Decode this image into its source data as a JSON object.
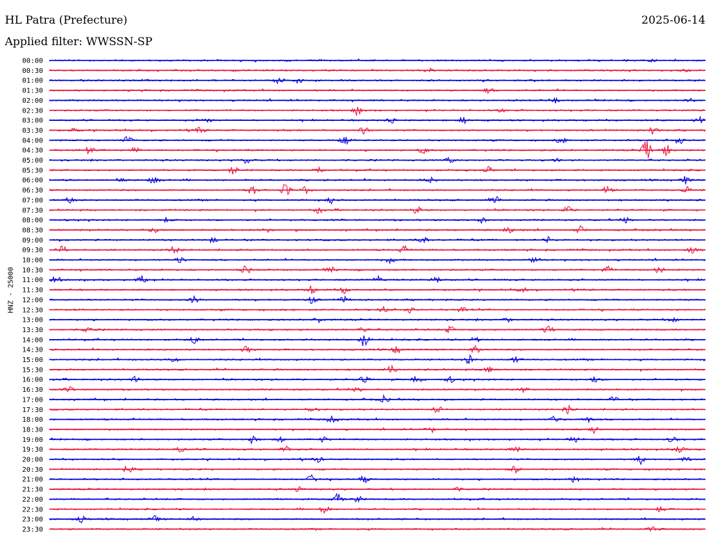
{
  "header": {
    "station": "HL Patra (Prefecture)",
    "date": "2025-06-14",
    "filter": "Applied filter: WWSSN-SP"
  },
  "axis": {
    "channel_label": "HNZ - 25000"
  },
  "colors": {
    "even": "#0000dd",
    "odd": "#e8143c"
  },
  "chart_data": {
    "type": "line",
    "title": "HL Patra (Prefecture)",
    "subtitle": "Applied filter: WWSSN-SP",
    "ylabel": "HNZ - 25000",
    "rows": [
      {
        "time": "00:00",
        "events": [
          [
            0.92,
            0.4
          ]
        ]
      },
      {
        "time": "00:30",
        "events": [
          [
            0.58,
            0.5
          ],
          [
            0.97,
            0.3
          ]
        ]
      },
      {
        "time": "01:00",
        "events": [
          [
            0.35,
            1.3
          ],
          [
            0.38,
            0.8
          ]
        ]
      },
      {
        "time": "01:30",
        "events": [
          [
            0.67,
            0.8
          ]
        ]
      },
      {
        "time": "02:00",
        "events": [
          [
            0.77,
            1.0
          ],
          [
            0.98,
            0.9
          ]
        ]
      },
      {
        "time": "02:30",
        "events": [
          [
            0.47,
            1.4
          ],
          [
            0.69,
            0.6
          ]
        ]
      },
      {
        "time": "03:00",
        "events": [
          [
            0.24,
            0.9
          ],
          [
            0.52,
            1.0
          ],
          [
            0.63,
            1.2
          ],
          [
            0.99,
            1.3
          ]
        ]
      },
      {
        "time": "03:30",
        "events": [
          [
            0.04,
            0.8
          ],
          [
            0.23,
            1.0
          ],
          [
            0.48,
            1.2
          ],
          [
            0.92,
            1.6
          ]
        ]
      },
      {
        "time": "04:00",
        "events": [
          [
            0.12,
            1.6
          ],
          [
            0.45,
            1.3
          ],
          [
            0.78,
            1.1
          ],
          [
            0.96,
            1.2
          ]
        ]
      },
      {
        "time": "04:30",
        "events": [
          [
            0.06,
            1.1
          ],
          [
            0.13,
            1.0
          ],
          [
            0.57,
            1.0
          ],
          [
            0.91,
            3.2
          ],
          [
            0.94,
            2.0
          ]
        ]
      },
      {
        "time": "05:00",
        "events": [
          [
            0.3,
            1.1
          ],
          [
            0.61,
            1.0
          ],
          [
            0.77,
            0.8
          ]
        ]
      },
      {
        "time": "05:30",
        "events": [
          [
            0.28,
            1.5
          ],
          [
            0.41,
            1.1
          ],
          [
            0.67,
            1.2
          ]
        ]
      },
      {
        "time": "06:00",
        "events": [
          [
            0.11,
            1.0
          ],
          [
            0.16,
            1.2
          ],
          [
            0.58,
            1.0
          ],
          [
            0.97,
            1.3
          ]
        ]
      },
      {
        "time": "06:30",
        "events": [
          [
            0.31,
            1.8
          ],
          [
            0.36,
            2.0
          ],
          [
            0.39,
            1.1
          ],
          [
            0.85,
            1.2
          ],
          [
            0.97,
            1.2
          ]
        ]
      },
      {
        "time": "07:00",
        "events": [
          [
            0.03,
            1.0
          ],
          [
            0.43,
            1.1
          ],
          [
            0.68,
            1.0
          ]
        ]
      },
      {
        "time": "07:30",
        "events": [
          [
            0.41,
            1.0
          ],
          [
            0.56,
            1.2
          ],
          [
            0.79,
            1.1
          ]
        ]
      },
      {
        "time": "08:00",
        "events": [
          [
            0.18,
            1.1
          ],
          [
            0.66,
            1.0
          ],
          [
            0.88,
            1.0
          ]
        ]
      },
      {
        "time": "08:30",
        "events": [
          [
            0.16,
            1.1
          ],
          [
            0.33,
            1.2
          ],
          [
            0.7,
            1.0
          ],
          [
            0.81,
            1.3
          ]
        ]
      },
      {
        "time": "09:00",
        "events": [
          [
            0.25,
            1.0
          ],
          [
            0.57,
            1.0
          ],
          [
            0.76,
            1.1
          ]
        ]
      },
      {
        "time": "09:30",
        "events": [
          [
            0.02,
            1.3
          ],
          [
            0.19,
            1.2
          ],
          [
            0.54,
            1.1
          ],
          [
            0.98,
            1.6
          ]
        ]
      },
      {
        "time": "10:00",
        "events": [
          [
            0.2,
            1.1
          ],
          [
            0.52,
            1.0
          ],
          [
            0.74,
            1.1
          ]
        ]
      },
      {
        "time": "10:30",
        "events": [
          [
            0.3,
            1.4
          ],
          [
            0.43,
            1.1
          ],
          [
            0.85,
            1.4
          ],
          [
            0.93,
            1.3
          ]
        ]
      },
      {
        "time": "11:00",
        "events": [
          [
            0.01,
            1.2
          ],
          [
            0.14,
            1.5
          ],
          [
            0.5,
            1.2
          ],
          [
            0.59,
            1.0
          ]
        ]
      },
      {
        "time": "11:30",
        "events": [
          [
            0.4,
            1.4
          ],
          [
            0.45,
            1.2
          ],
          [
            0.72,
            0.9
          ]
        ]
      },
      {
        "time": "12:00",
        "events": [
          [
            0.22,
            1.1
          ],
          [
            0.4,
            1.2
          ],
          [
            0.45,
            1.2
          ]
        ]
      },
      {
        "time": "12:30",
        "events": [
          [
            0.51,
            1.2
          ],
          [
            0.55,
            1.0
          ],
          [
            0.63,
            1.0
          ]
        ]
      },
      {
        "time": "13:00",
        "events": [
          [
            0.41,
            0.9
          ],
          [
            0.7,
            0.8
          ],
          [
            0.95,
            0.9
          ]
        ]
      },
      {
        "time": "13:30",
        "events": [
          [
            0.06,
            1.0
          ],
          [
            0.48,
            1.2
          ],
          [
            0.61,
            1.1
          ],
          [
            0.76,
            1.4
          ]
        ]
      },
      {
        "time": "14:00",
        "events": [
          [
            0.22,
            1.2
          ],
          [
            0.48,
            2.2
          ],
          [
            0.65,
            1.3
          ]
        ]
      },
      {
        "time": "14:30",
        "events": [
          [
            0.3,
            1.2
          ],
          [
            0.53,
            1.3
          ],
          [
            0.65,
            1.2
          ]
        ]
      },
      {
        "time": "15:00",
        "events": [
          [
            0.19,
            0.9
          ],
          [
            0.64,
            1.4
          ],
          [
            0.71,
            1.0
          ]
        ]
      },
      {
        "time": "15:30",
        "events": [
          [
            0.52,
            1.3
          ],
          [
            0.67,
            1.3
          ]
        ]
      },
      {
        "time": "16:00",
        "events": [
          [
            0.13,
            1.1
          ],
          [
            0.48,
            1.0
          ],
          [
            0.56,
            1.3
          ],
          [
            0.61,
            1.0
          ],
          [
            0.83,
            1.1
          ]
        ]
      },
      {
        "time": "16:30",
        "events": [
          [
            0.03,
            0.8
          ],
          [
            0.47,
            0.9
          ],
          [
            0.72,
            1.1
          ]
        ]
      },
      {
        "time": "17:00",
        "events": [
          [
            0.51,
            1.2
          ],
          [
            0.86,
            0.8
          ]
        ]
      },
      {
        "time": "17:30",
        "events": [
          [
            0.4,
            1.0
          ],
          [
            0.59,
            1.6
          ],
          [
            0.79,
            1.2
          ]
        ]
      },
      {
        "time": "18:00",
        "events": [
          [
            0.43,
            1.2
          ],
          [
            0.77,
            1.1
          ],
          [
            0.82,
            1.0
          ]
        ]
      },
      {
        "time": "18:30",
        "events": [
          [
            0.58,
            1.1
          ],
          [
            0.83,
            1.3
          ]
        ]
      },
      {
        "time": "19:00",
        "events": [
          [
            0.31,
            1.3
          ],
          [
            0.35,
            1.1
          ],
          [
            0.42,
            1.1
          ],
          [
            0.8,
            1.1
          ],
          [
            0.95,
            1.1
          ]
        ]
      },
      {
        "time": "19:30",
        "events": [
          [
            0.2,
            1.0
          ],
          [
            0.36,
            1.1
          ],
          [
            0.71,
            1.2
          ],
          [
            0.96,
            1.3
          ]
        ]
      },
      {
        "time": "20:00",
        "events": [
          [
            0.41,
            1.0
          ],
          [
            0.9,
            1.4
          ],
          [
            0.97,
            1.0
          ]
        ]
      },
      {
        "time": "20:30",
        "events": [
          [
            0.12,
            1.2
          ],
          [
            0.71,
            1.1
          ]
        ]
      },
      {
        "time": "21:00",
        "events": [
          [
            0.4,
            1.3
          ],
          [
            0.48,
            1.1
          ],
          [
            0.8,
            1.2
          ]
        ]
      },
      {
        "time": "21:30",
        "events": [
          [
            0.38,
            0.8
          ],
          [
            0.62,
            0.8
          ]
        ]
      },
      {
        "time": "22:00",
        "events": [
          [
            0.44,
            2.0
          ],
          [
            0.47,
            1.0
          ]
        ]
      },
      {
        "time": "22:30",
        "events": [
          [
            0.42,
            1.4
          ],
          [
            0.93,
            1.0
          ]
        ]
      },
      {
        "time": "23:00",
        "events": [
          [
            0.05,
            1.0
          ],
          [
            0.16,
            1.1
          ],
          [
            0.22,
            0.9
          ]
        ]
      },
      {
        "time": "23:30",
        "events": [
          [
            0.92,
            1.3
          ]
        ]
      }
    ]
  }
}
